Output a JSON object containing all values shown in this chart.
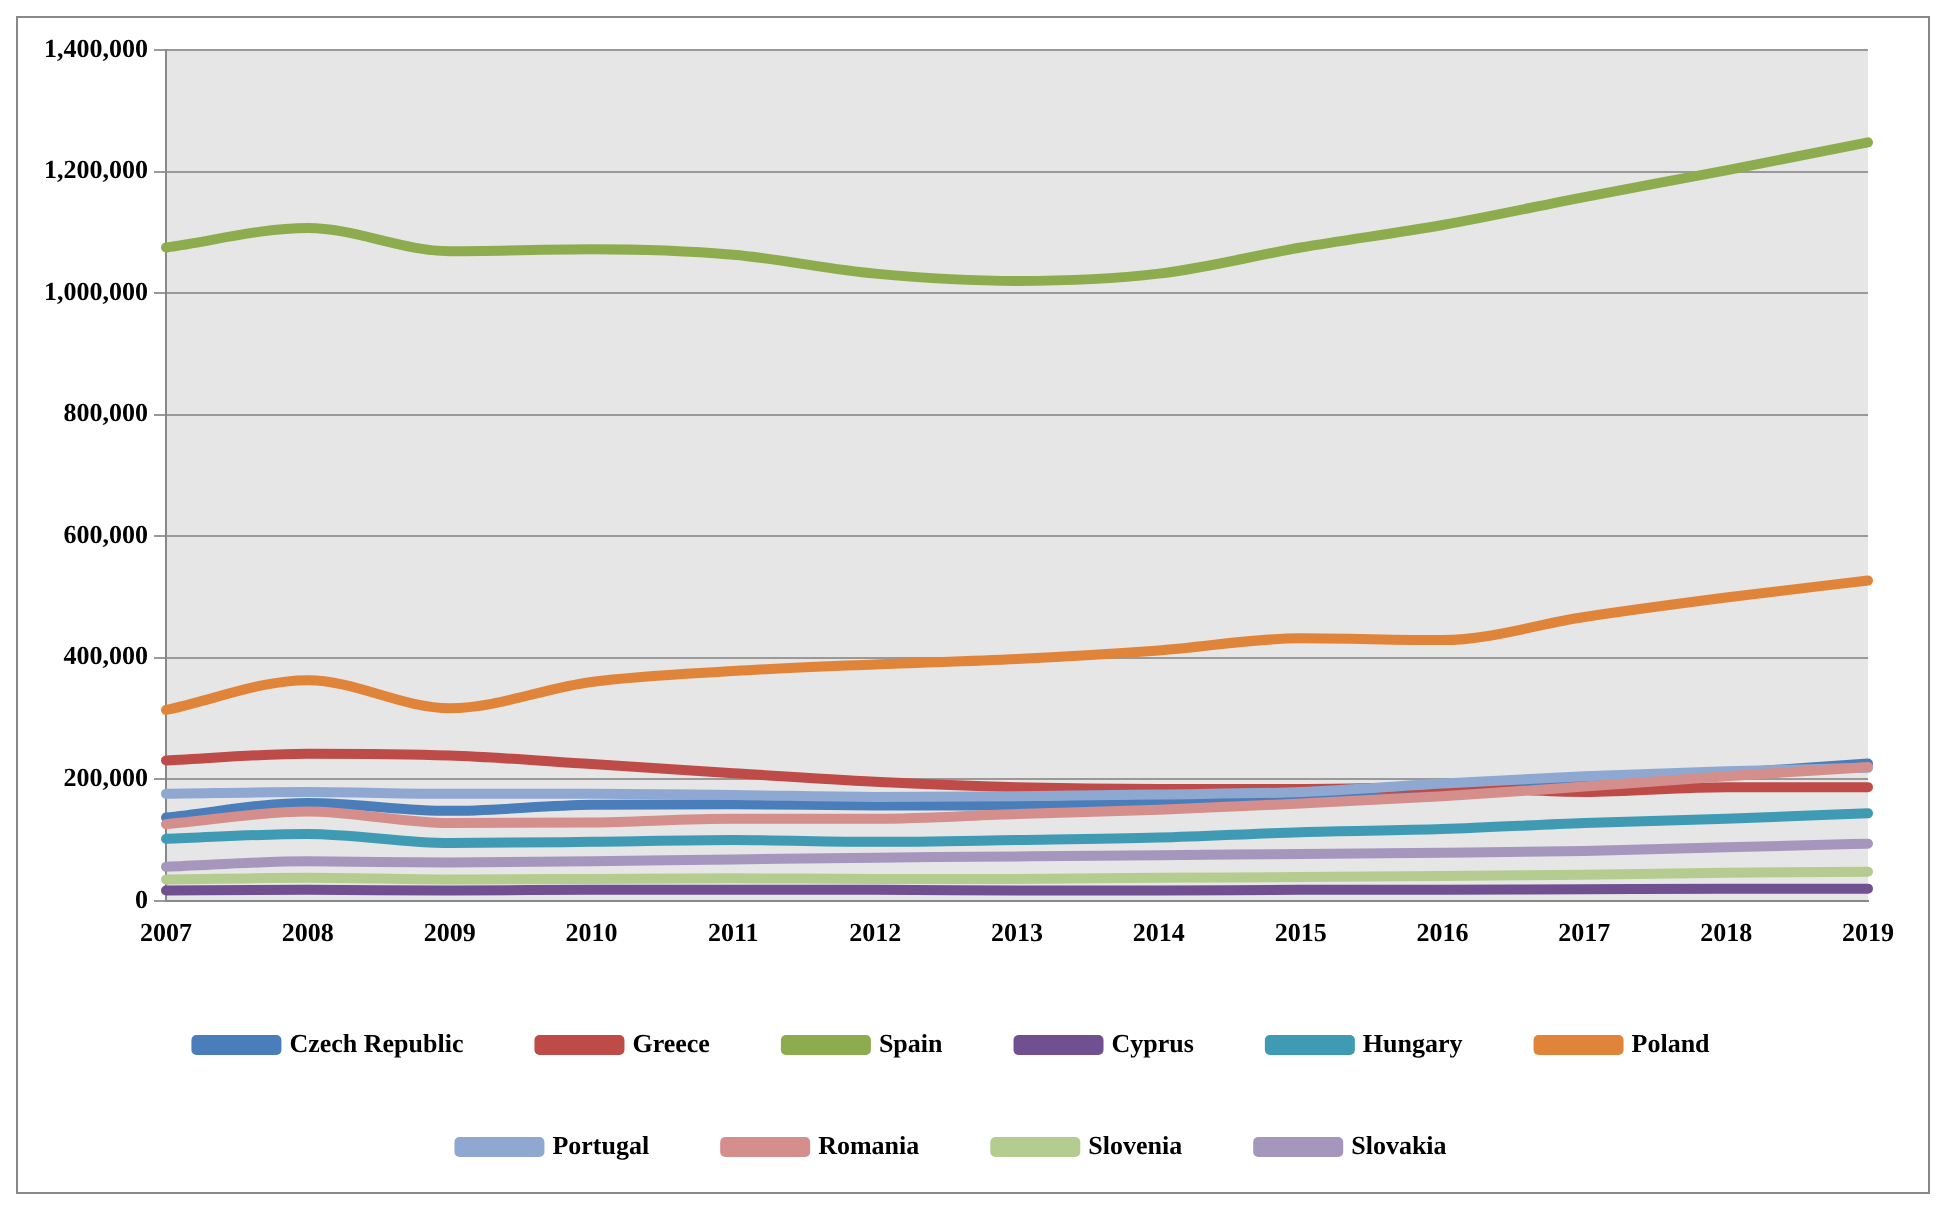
{
  "chart_data": {
    "type": "line",
    "categories": [
      "2007",
      "2008",
      "2009",
      "2010",
      "2011",
      "2012",
      "2013",
      "2014",
      "2015",
      "2016",
      "2017",
      "2018",
      "2019"
    ],
    "ylim": [
      0,
      1400000
    ],
    "yticks": [
      {
        "value": 0,
        "label": "0"
      },
      {
        "value": 200000,
        "label": "200,000"
      },
      {
        "value": 400000,
        "label": "400,000"
      },
      {
        "value": 600000,
        "label": "600,000"
      },
      {
        "value": 800000,
        "label": "800,000"
      },
      {
        "value": 1000000,
        "label": "1,000,000"
      },
      {
        "value": 1200000,
        "label": "1,200,000"
      },
      {
        "value": 1400000,
        "label": "1,400,000"
      }
    ],
    "grid": "y",
    "legend": "bottom",
    "marker": "none",
    "line_style": "solid",
    "series": [
      {
        "name": "Czech Republic",
        "color": "#4a7ebb",
        "values": [
          137000,
          161000,
          148000,
          158000,
          159000,
          157000,
          157000,
          160000,
          170000,
          185000,
          198000,
          210000,
          226000
        ]
      },
      {
        "name": "Greece",
        "color": "#be4b48",
        "values": [
          231000,
          242000,
          239000,
          225000,
          210000,
          196000,
          187000,
          184000,
          184000,
          187000,
          179000,
          187000,
          187000
        ]
      },
      {
        "name": "Spain",
        "color": "#8cac4e",
        "values": [
          1075000,
          1107000,
          1069000,
          1072000,
          1063000,
          1032000,
          1020000,
          1032000,
          1075000,
          1112000,
          1158000,
          1202000,
          1248000
        ]
      },
      {
        "name": "Cyprus",
        "color": "#705090",
        "values": [
          17000,
          18000,
          17000,
          18000,
          18000,
          18000,
          17000,
          17000,
          18000,
          18000,
          19000,
          20000,
          20000
        ]
      },
      {
        "name": "Hungary",
        "color": "#3f9bb3",
        "values": [
          102000,
          110000,
          95000,
          97000,
          100000,
          97000,
          100000,
          104000,
          113000,
          118000,
          128000,
          135000,
          144000
        ]
      },
      {
        "name": "Poland",
        "color": "#e0843a",
        "values": [
          314000,
          363000,
          317000,
          360000,
          378000,
          389000,
          398000,
          412000,
          432000,
          429000,
          467000,
          499000,
          527000
        ]
      },
      {
        "name": "Portugal",
        "color": "#8fa8d2",
        "values": [
          176000,
          179000,
          176000,
          176000,
          174000,
          171000,
          172000,
          175000,
          179000,
          193000,
          205000,
          213000,
          219000
        ]
      },
      {
        "name": "Romania",
        "color": "#d48e8c",
        "values": [
          126000,
          147000,
          128000,
          129000,
          135000,
          135000,
          143000,
          150000,
          160000,
          172000,
          188000,
          205000,
          220000
        ]
      },
      {
        "name": "Slovenia",
        "color": "#b5cc90",
        "values": [
          35000,
          38000,
          35000,
          36000,
          37000,
          36000,
          36000,
          38000,
          39000,
          41000,
          43000,
          46000,
          48000
        ]
      },
      {
        "name": "Slovakia",
        "color": "#a596bd",
        "values": [
          56000,
          65000,
          63000,
          65000,
          68000,
          71000,
          73000,
          75000,
          77000,
          79000,
          82000,
          88000,
          94000
        ]
      }
    ]
  }
}
